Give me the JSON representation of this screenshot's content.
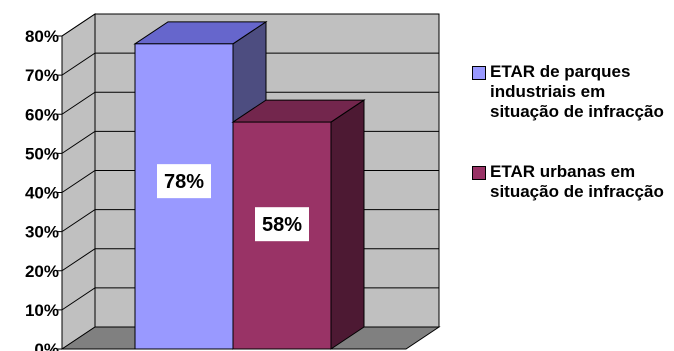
{
  "chart_data": {
    "type": "bar",
    "three_d": true,
    "categories": [
      ""
    ],
    "series": [
      {
        "name": "ETAR de parques industriais em situação de infracção",
        "values": [
          78
        ],
        "label": "78%",
        "color": "#9999ff",
        "top_color": "#6666cc",
        "side_color": "#4d4d80"
      },
      {
        "name": "ETAR urbanas em situação de infracção",
        "values": [
          58
        ],
        "label": "58%",
        "color": "#993366",
        "top_color": "#73264d",
        "side_color": "#4d1933"
      }
    ],
    "yticks": [
      "0%",
      "10%",
      "20%",
      "30%",
      "40%",
      "50%",
      "60%",
      "70%",
      "80%"
    ],
    "ylim": [
      0,
      80
    ],
    "grid": true,
    "legend_position": "right",
    "wall_color": "#c0c0c0",
    "floor_color": "#808080"
  }
}
